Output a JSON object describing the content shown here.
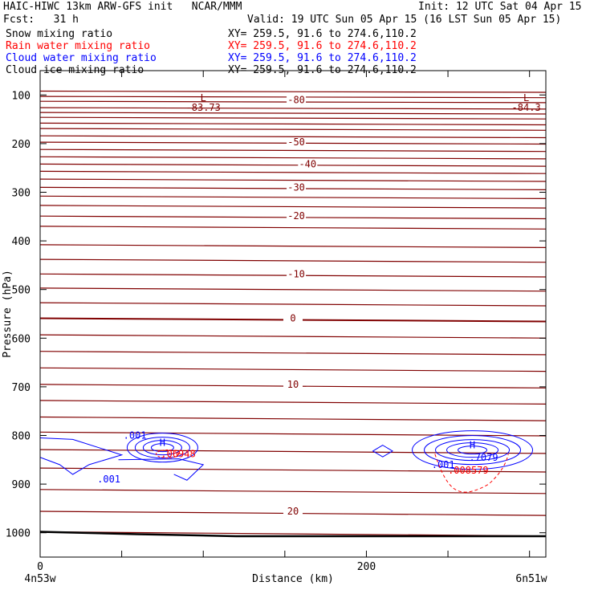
{
  "header": {
    "title": "HAIC-HIWC 13km ARW-GFS init   NCAR/MMM",
    "init": "Init: 12 UTC Sat 04 Apr 15",
    "fcst": "Fcst:   31 h",
    "valid": "Valid: 19 UTC Sun 05 Apr 15 (16 LST Sun 05 Apr 15)"
  },
  "fields": [
    {
      "label": "Snow mixing ratio",
      "xy": "XY= 259.5, 91.6 to 274.6,110.2",
      "color": "#000000"
    },
    {
      "label": "Rain water mixing ratio",
      "xy": "XY= 259.5, 91.6 to 274.6,110.2",
      "color": "#ff0000"
    },
    {
      "label": "Cloud water mixing ratio",
      "xy": "XY= 259.5, 91.6 to 274.6,110.2",
      "color": "#0000ff"
    },
    {
      "label": "Cloud ice mixing ratio",
      "xy": "XY= 259.5, 91.6 to 274.6,110.2",
      "color": "#000000"
    }
  ],
  "chart_data": {
    "type": "line",
    "title": "",
    "xlabel": "Distance (km)",
    "ylabel": "Pressure (hPa)",
    "xlim": [
      0,
      310
    ],
    "ylim": [
      1050,
      50
    ],
    "y_scale": "linear-inverted",
    "x_ticks": [
      0,
      200
    ],
    "x_tick_labels": [
      "0",
      "200"
    ],
    "y_ticks": [
      100,
      200,
      300,
      400,
      500,
      600,
      700,
      800,
      900,
      1000
    ],
    "y_tick_labels": [
      "100",
      "200",
      "300",
      "400",
      "500",
      "600",
      "700",
      "800",
      "900",
      "1000"
    ],
    "endpoint_labels": {
      "left": "4n53w",
      "right": "6n51w"
    },
    "temperature_contours": {
      "color": "#800000",
      "levels_hpa": [
        92,
        103,
        113,
        126,
        136,
        146,
        158,
        169,
        184,
        197,
        212,
        227,
        242,
        257,
        273,
        290,
        308,
        327,
        349,
        370,
        408,
        438,
        468,
        497,
        527,
        559,
        593,
        627,
        661,
        695,
        728,
        762,
        793,
        829,
        867,
        911,
        956,
        998
      ],
      "labels": [
        {
          "text": "-80",
          "x": 157,
          "p": 110
        },
        {
          "text": "-50",
          "x": 157,
          "p": 197
        },
        {
          "text": "-40",
          "x": 164,
          "p": 242
        },
        {
          "text": "-30",
          "x": 157,
          "p": 290
        },
        {
          "text": "-20",
          "x": 157,
          "p": 349
        },
        {
          "text": "-10",
          "x": 157,
          "p": 468
        },
        {
          "text": "0",
          "x": 155,
          "p": 559
        },
        {
          "text": "10",
          "x": 155,
          "p": 695
        },
        {
          "text": "20",
          "x": 155,
          "p": 956
        }
      ],
      "low_labels": [
        {
          "mark": "L",
          "value": "-83.73",
          "x": 100,
          "p": 90
        },
        {
          "mark": "L",
          "value": "-84.3",
          "x": 298,
          "p": 90
        }
      ]
    },
    "cloud_water": {
      "color": "#0000ff",
      "labels": [
        {
          "text": ".001",
          "x": 51,
          "p": 800
        },
        {
          "text": ".001",
          "x": 35,
          "p": 890
        },
        {
          "text": ".001",
          "x": 240,
          "p": 860
        },
        {
          "text": ".7079",
          "x": 263,
          "p": 845
        }
      ],
      "highs": [
        {
          "mark": "H",
          "x": 75,
          "p": 815
        },
        {
          "mark": "H",
          "x": 265,
          "p": 820
        }
      ]
    },
    "rain_water": {
      "color": "#ff0000",
      "labels": [
        {
          "text": ".06948",
          "x": 74,
          "p": 838
        },
        {
          "text": ".008579",
          "x": 250,
          "p": 872
        }
      ]
    },
    "surface": {
      "color": "#000000"
    }
  }
}
